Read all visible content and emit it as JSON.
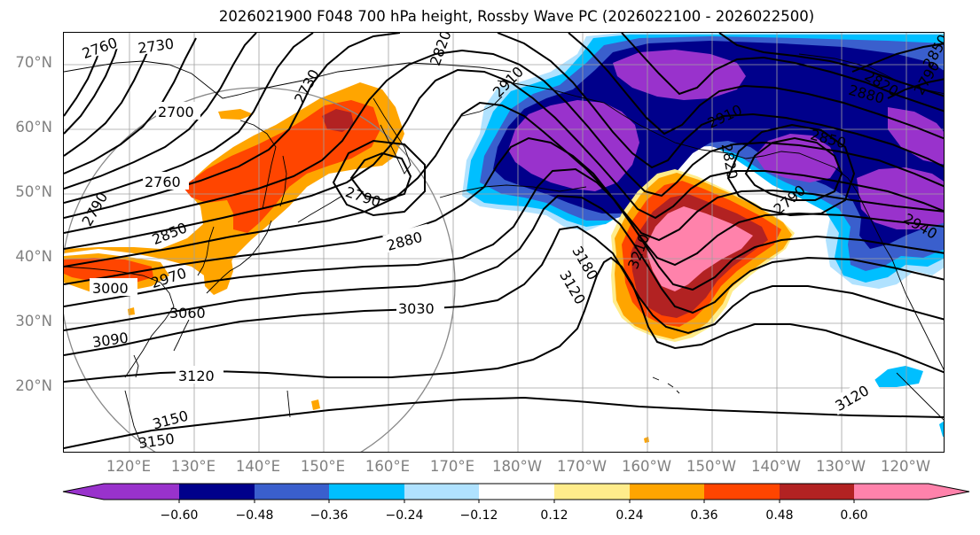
{
  "title": "2026021900 F048 700 hPa height, Rossby Wave PC (2026022100 - 2026022500)",
  "lat_labels": [
    "70°N",
    "60°N",
    "50°N",
    "40°N",
    "30°N",
    "20°N"
  ],
  "lon_labels": [
    "120°E",
    "130°E",
    "140°E",
    "150°E",
    "160°E",
    "170°E",
    "180°W",
    "170°W",
    "160°W",
    "150°W",
    "140°W",
    "130°W",
    "120°W"
  ],
  "contour_labels": [
    "2760",
    "2730",
    "2700",
    "2730",
    "2820",
    "2910",
    "2760",
    "2790",
    "2850",
    "2790",
    "2880",
    "2970",
    "3000",
    "3060",
    "3090",
    "3030",
    "3120",
    "3150",
    "3150",
    "3180",
    "3210",
    "3120",
    "2820",
    "2910",
    "2790",
    "2850",
    "2880",
    "2820",
    "2790",
    "2850",
    "2940",
    "3120"
  ],
  "colorbar": {
    "ticks": [
      "−0.60",
      "−0.48",
      "−0.36",
      "−0.24",
      "−0.12",
      "0.12",
      "0.24",
      "0.36",
      "0.48",
      "0.60"
    ],
    "colors": [
      "#9932cc",
      "#00008b",
      "#3a5fcd",
      "#00bfff",
      "#b0e2ff",
      "#ffffff",
      "#ffec8b",
      "#ffa500",
      "#ff4500",
      "#b22222",
      "#ff82ab"
    ],
    "min_color": "#9932cc",
    "max_color": "#ff82ab"
  },
  "shading_colors": {
    "purple": "#9932cc",
    "navy": "#00008b",
    "royal": "#3a5fcd",
    "sky": "#00bfff",
    "pale_blue": "#b0e2ff",
    "yellow": "#ffec8b",
    "orange": "#ffa500",
    "red_orange": "#ff4500",
    "dark_red": "#b22222",
    "pink": "#ff82ab"
  }
}
